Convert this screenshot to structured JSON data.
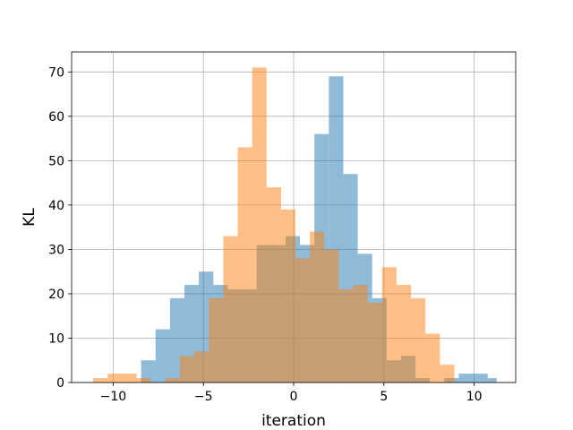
{
  "chart_data": {
    "type": "bar",
    "title": "",
    "xlabel": "iteration",
    "ylabel": "KL",
    "xlim": [
      -12.3,
      12.3
    ],
    "ylim": [
      0,
      74.5
    ],
    "xticks": [
      -10,
      -5,
      0,
      5,
      10
    ],
    "xtick_labels": [
      "−10",
      "−5",
      "0",
      "5",
      "10"
    ],
    "yticks": [
      0,
      10,
      20,
      30,
      40,
      50,
      60,
      70
    ],
    "ytick_labels": [
      "0",
      "10",
      "20",
      "30",
      "40",
      "50",
      "60",
      "70"
    ],
    "grid": true,
    "legend": "none",
    "series": [
      {
        "color": "#1f77b4",
        "opacity": 0.5,
        "bins": [
          [
            -8.45,
            -7.65,
            5
          ],
          [
            -7.65,
            -6.85,
            12
          ],
          [
            -6.85,
            -6.05,
            19
          ],
          [
            -6.05,
            -5.25,
            22
          ],
          [
            -5.25,
            -4.45,
            25
          ],
          [
            -4.45,
            -3.65,
            22
          ],
          [
            -3.65,
            -2.85,
            21
          ],
          [
            -2.85,
            -2.05,
            21
          ],
          [
            -2.05,
            -1.25,
            31
          ],
          [
            -1.25,
            -0.45,
            31
          ],
          [
            -0.45,
            0.35,
            33
          ],
          [
            0.35,
            1.15,
            31
          ],
          [
            1.15,
            1.95,
            56
          ],
          [
            1.95,
            2.75,
            69
          ],
          [
            2.75,
            3.55,
            47
          ],
          [
            3.55,
            4.35,
            29
          ],
          [
            4.35,
            5.15,
            19
          ],
          [
            5.15,
            5.95,
            5
          ],
          [
            5.95,
            6.75,
            6
          ],
          [
            6.75,
            7.55,
            1
          ],
          [
            7.55,
            8.35,
            0
          ],
          [
            8.35,
            9.15,
            1
          ],
          [
            9.15,
            9.95,
            2
          ],
          [
            9.95,
            10.75,
            2
          ],
          [
            10.75,
            11.25,
            1
          ]
        ]
      },
      {
        "color": "#ff7f0e",
        "opacity": 0.5,
        "bins": [
          [
            -11.1,
            -10.3,
            1
          ],
          [
            -10.3,
            -9.5,
            2
          ],
          [
            -9.5,
            -8.7,
            2
          ],
          [
            -8.7,
            -7.9,
            1
          ],
          [
            -7.9,
            -7.1,
            0
          ],
          [
            -7.1,
            -6.3,
            1
          ],
          [
            -6.3,
            -5.5,
            6
          ],
          [
            -5.5,
            -4.7,
            7
          ],
          [
            -4.7,
            -3.9,
            19
          ],
          [
            -3.9,
            -3.1,
            33
          ],
          [
            -3.1,
            -2.3,
            53
          ],
          [
            -2.3,
            -1.5,
            71
          ],
          [
            -1.5,
            -0.7,
            44
          ],
          [
            -0.7,
            0.1,
            39
          ],
          [
            0.1,
            0.9,
            28
          ],
          [
            0.9,
            1.7,
            34
          ],
          [
            1.7,
            2.5,
            30
          ],
          [
            2.5,
            3.3,
            21
          ],
          [
            3.3,
            4.1,
            22
          ],
          [
            4.1,
            4.9,
            18
          ],
          [
            4.9,
            5.7,
            26
          ],
          [
            5.7,
            6.5,
            22
          ],
          [
            6.5,
            7.3,
            19
          ],
          [
            7.3,
            8.1,
            11
          ],
          [
            8.1,
            8.9,
            4
          ]
        ]
      }
    ]
  }
}
